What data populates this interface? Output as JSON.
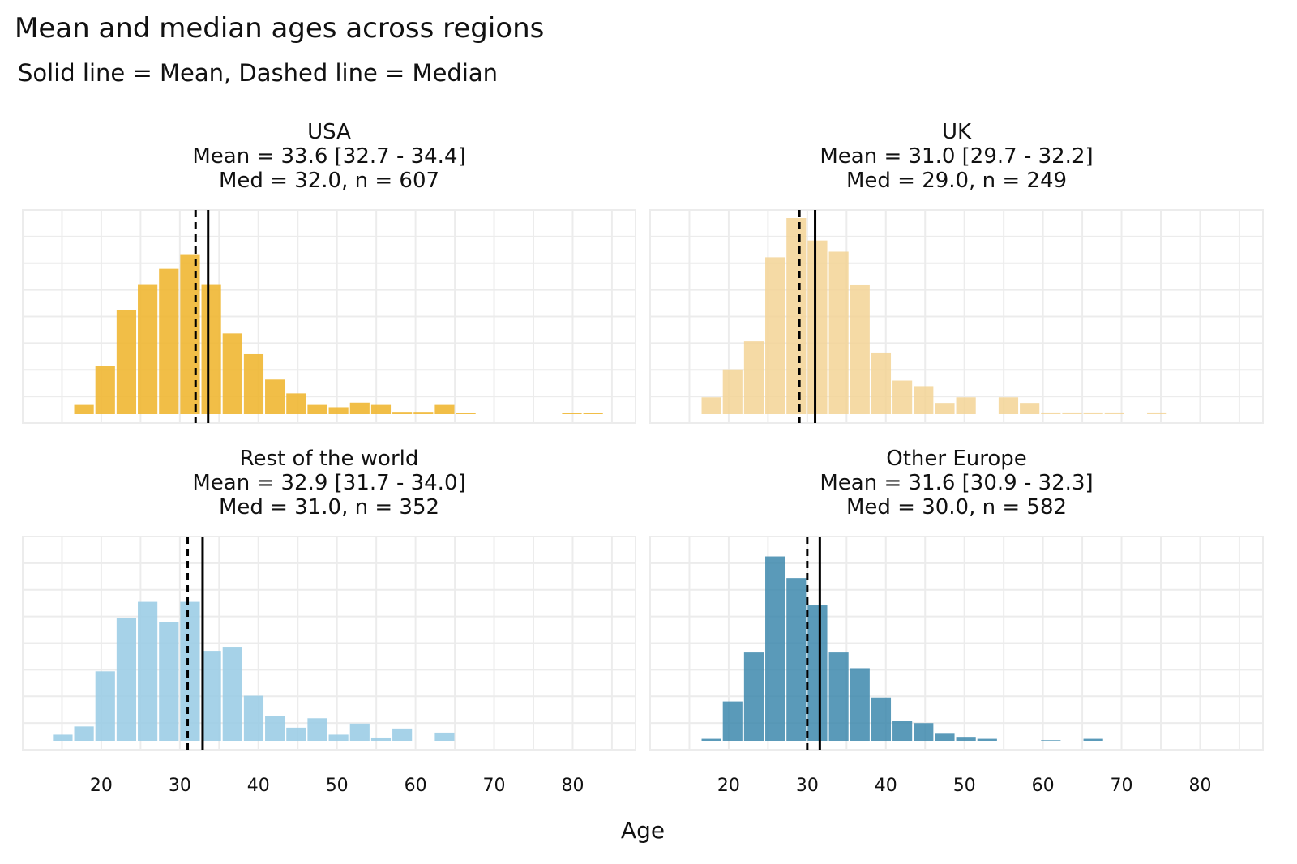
{
  "chart_data": {
    "type": "bar",
    "subtype": "faceted-histogram",
    "title": "Mean and median ages across regions",
    "subtitle": "Solid line = Mean, Dashed line = Median",
    "xlabel": "Age",
    "ylabel": "",
    "xlim": [
      10,
      88
    ],
    "x_ticks": [
      20,
      30,
      40,
      50,
      60,
      70,
      80
    ],
    "grid": true,
    "bin_width": 2.7,
    "bin_centers": [
      15.1,
      17.8,
      20.5,
      23.2,
      25.9,
      28.6,
      31.3,
      34.0,
      36.7,
      39.4,
      42.1,
      44.8,
      47.5,
      50.2,
      52.9,
      55.6,
      58.3,
      61.0,
      63.7,
      66.4,
      69.1,
      71.8,
      74.5,
      77.2,
      79.9,
      82.6,
      85.3
    ],
    "facets": [
      {
        "name": "USA",
        "strip_lines": [
          "USA",
          "Mean = 33.6 [32.7 - 34.4]",
          "Med = 32.0, n = 607"
        ],
        "color": "#f0b733",
        "opacity": 0.9,
        "mean": 33.6,
        "median": 32.0,
        "ylim": [
          0,
          85
        ],
        "counts": [
          0,
          4,
          21,
          45,
          56,
          63,
          69,
          56,
          35,
          26,
          15,
          9,
          4,
          3,
          5,
          4,
          1,
          1,
          4,
          0.5,
          0,
          0,
          0,
          0,
          0.5,
          0.5,
          0
        ]
      },
      {
        "name": "UK",
        "strip_lines": [
          "UK",
          "Mean = 31.0 [29.7 - 32.2]",
          "Med = 29.0, n = 249"
        ],
        "color": "#f3d495",
        "opacity": 0.85,
        "mean": 31.0,
        "median": 29.0,
        "ylim": [
          0,
          35
        ],
        "counts": [
          0,
          3,
          8,
          13,
          28,
          35,
          31,
          29,
          23,
          11,
          6,
          5,
          2,
          3,
          0,
          3,
          2,
          0.3,
          0.3,
          0.3,
          0.3,
          0,
          0.3,
          0,
          0,
          0,
          0
        ]
      },
      {
        "name": "Rest of the world",
        "strip_lines": [
          "Rest of the world",
          "Mean = 32.9 [31.7 - 34.0]",
          "Med = 31.0, n = 352"
        ],
        "color": "#9ccde6",
        "opacity": 0.9,
        "mean": 32.9,
        "median": 31.0,
        "ylim": [
          0,
          48
        ],
        "counts": [
          1.5,
          3.5,
          17,
          30,
          34,
          29,
          34,
          22,
          23,
          11,
          6,
          3.2,
          5.5,
          1.5,
          4.2,
          0.8,
          3,
          0,
          2,
          0,
          0,
          0,
          0,
          0,
          0,
          0,
          0
        ]
      },
      {
        "name": "Other Europe",
        "strip_lines": [
          "Other Europe",
          "Mean = 31.6 [30.9 - 32.3]",
          "Med = 30.0, n = 582"
        ],
        "color": "#3d88ad",
        "opacity": 0.85,
        "mean": 31.6,
        "median": 30.0,
        "ylim": [
          0,
          100
        ],
        "counts": [
          0,
          1,
          20,
          45,
          94,
          83,
          69,
          45,
          37,
          22,
          10,
          9,
          4,
          2,
          1,
          0,
          0,
          0.3,
          0,
          1,
          0,
          0,
          0,
          0,
          0,
          0,
          0
        ]
      }
    ]
  }
}
